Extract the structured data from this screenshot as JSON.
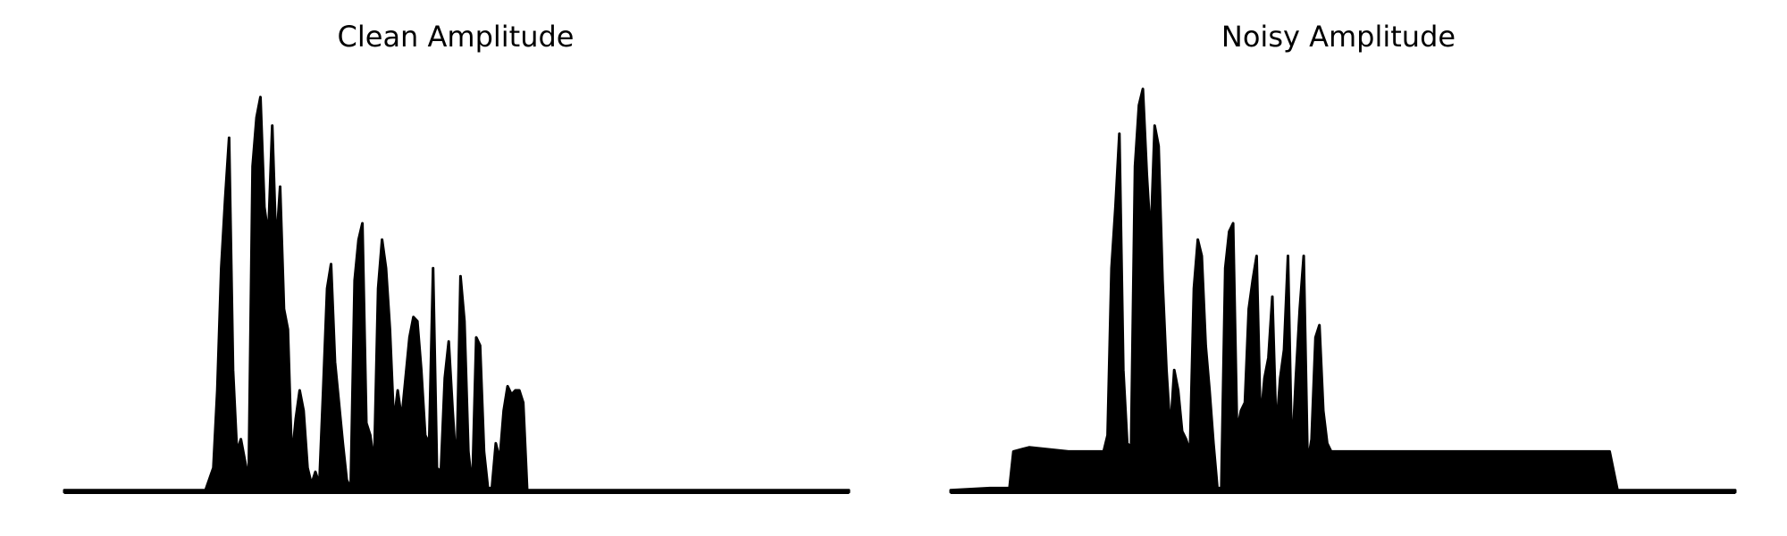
{
  "chart_data": [
    {
      "type": "area",
      "title": "Clean Amplitude",
      "xlabel": "",
      "ylabel": "",
      "axes_visible": false,
      "grid": false,
      "color": "#000000",
      "x": [
        0.0,
        0.05,
        0.1,
        0.15,
        0.18,
        0.19,
        0.195,
        0.2,
        0.205,
        0.21,
        0.215,
        0.22,
        0.225,
        0.23,
        0.235,
        0.24,
        0.245,
        0.25,
        0.255,
        0.26,
        0.265,
        0.27,
        0.275,
        0.28,
        0.285,
        0.29,
        0.295,
        0.3,
        0.305,
        0.31,
        0.315,
        0.32,
        0.325,
        0.33,
        0.335,
        0.34,
        0.345,
        0.35,
        0.355,
        0.36,
        0.365,
        0.37,
        0.375,
        0.38,
        0.385,
        0.39,
        0.395,
        0.4,
        0.405,
        0.41,
        0.415,
        0.42,
        0.425,
        0.43,
        0.435,
        0.44,
        0.445,
        0.45,
        0.455,
        0.46,
        0.465,
        0.47,
        0.475,
        0.48,
        0.485,
        0.49,
        0.495,
        0.5,
        0.505,
        0.51,
        0.515,
        0.52,
        0.525,
        0.53,
        0.535,
        0.54,
        0.545,
        0.55,
        0.555,
        0.56,
        0.565,
        0.57,
        0.575,
        0.58,
        0.585,
        0.59,
        0.595,
        0.6,
        0.605,
        0.61,
        0.615,
        0.62,
        0.625,
        0.63,
        0.635,
        0.64,
        0.645,
        0.65,
        0.655,
        0.66,
        0.665,
        0.67,
        0.675,
        0.68,
        0.685,
        0.69,
        0.695,
        0.7,
        0.705,
        0.71,
        0.72,
        0.75,
        0.8,
        0.85,
        0.9,
        0.95,
        1.0
      ],
      "y": [
        0.005,
        0.005,
        0.005,
        0.005,
        0.005,
        0.06,
        0.25,
        0.55,
        0.72,
        0.87,
        0.3,
        0.1,
        0.13,
        0.08,
        0.03,
        0.8,
        0.92,
        0.97,
        0.7,
        0.63,
        0.9,
        0.6,
        0.75,
        0.45,
        0.4,
        0.08,
        0.18,
        0.25,
        0.2,
        0.06,
        0.02,
        0.05,
        0.02,
        0.25,
        0.5,
        0.56,
        0.32,
        0.22,
        0.12,
        0.03,
        0.01,
        0.52,
        0.62,
        0.66,
        0.17,
        0.14,
        0.07,
        0.5,
        0.62,
        0.55,
        0.4,
        0.17,
        0.25,
        0.18,
        0.28,
        0.38,
        0.43,
        0.42,
        0.3,
        0.14,
        0.12,
        0.55,
        0.06,
        0.05,
        0.28,
        0.37,
        0.2,
        0.05,
        0.53,
        0.42,
        0.1,
        0.01,
        0.38,
        0.36,
        0.1,
        0.01,
        0.01,
        0.12,
        0.08,
        0.2,
        0.26,
        0.24,
        0.25,
        0.25,
        0.22,
        0.005,
        0.005,
        0.005,
        0.005,
        0.005,
        0.005,
        0.005,
        0.005,
        0.005,
        0.005,
        0.005,
        0.005,
        0.005,
        0.005,
        0.005,
        0.005,
        0.005,
        0.005,
        0.005,
        0.005,
        0.005,
        0.005,
        0.005,
        0.005,
        0.005,
        0.005,
        0.005,
        0.005,
        0.005,
        0.005,
        0.005,
        0.005
      ]
    },
    {
      "type": "area",
      "title": "Noisy Amplitude",
      "xlabel": "",
      "ylabel": "",
      "axes_visible": false,
      "grid": false,
      "color": "#000000",
      "x": [
        0.0,
        0.05,
        0.075,
        0.08,
        0.1,
        0.15,
        0.195,
        0.2,
        0.205,
        0.21,
        0.215,
        0.22,
        0.225,
        0.23,
        0.235,
        0.24,
        0.245,
        0.25,
        0.255,
        0.26,
        0.265,
        0.27,
        0.275,
        0.28,
        0.285,
        0.29,
        0.295,
        0.3,
        0.305,
        0.31,
        0.315,
        0.32,
        0.325,
        0.33,
        0.335,
        0.34,
        0.345,
        0.35,
        0.355,
        0.36,
        0.365,
        0.37,
        0.375,
        0.38,
        0.385,
        0.39,
        0.395,
        0.4,
        0.405,
        0.41,
        0.415,
        0.42,
        0.425,
        0.43,
        0.435,
        0.44,
        0.445,
        0.45,
        0.455,
        0.46,
        0.465,
        0.47,
        0.475,
        0.48,
        0.485,
        0.49,
        0.495,
        0.5,
        0.505,
        0.51,
        0.515,
        0.52,
        0.525,
        0.53,
        0.535,
        0.54,
        0.545,
        0.55,
        0.555,
        0.56,
        0.565,
        0.57,
        0.575,
        0.58,
        0.585,
        0.59,
        0.595,
        0.6,
        0.605,
        0.61,
        0.615,
        0.62,
        0.625,
        0.63,
        0.635,
        0.64,
        0.645,
        0.65,
        0.655,
        0.66,
        0.665,
        0.67,
        0.675,
        0.68,
        0.685,
        0.69,
        0.695,
        0.7,
        0.705,
        0.71,
        0.72,
        0.75,
        0.8,
        0.84,
        0.85,
        0.88,
        0.9,
        0.95,
        1.0
      ],
      "y": [
        0.005,
        0.01,
        0.01,
        0.1,
        0.11,
        0.1,
        0.1,
        0.14,
        0.55,
        0.7,
        0.88,
        0.3,
        0.12,
        0.11,
        0.8,
        0.95,
        0.99,
        0.78,
        0.62,
        0.9,
        0.85,
        0.52,
        0.3,
        0.15,
        0.3,
        0.25,
        0.15,
        0.13,
        0.1,
        0.5,
        0.62,
        0.58,
        0.36,
        0.25,
        0.12,
        0.01,
        0.01,
        0.55,
        0.64,
        0.66,
        0.15,
        0.2,
        0.22,
        0.45,
        0.52,
        0.58,
        0.17,
        0.28,
        0.33,
        0.48,
        0.15,
        0.28,
        0.35,
        0.58,
        0.08,
        0.28,
        0.45,
        0.58,
        0.07,
        0.13,
        0.38,
        0.41,
        0.2,
        0.12,
        0.1,
        0.1,
        0.1,
        0.1,
        0.1,
        0.1,
        0.1,
        0.1,
        0.1,
        0.1,
        0.1,
        0.1,
        0.1,
        0.1,
        0.1,
        0.1,
        0.1,
        0.1,
        0.1,
        0.1,
        0.1,
        0.1,
        0.1,
        0.1,
        0.1,
        0.1,
        0.1,
        0.1,
        0.1,
        0.1,
        0.1,
        0.1,
        0.1,
        0.1,
        0.1,
        0.1,
        0.1,
        0.1,
        0.1,
        0.1,
        0.1,
        0.1,
        0.1,
        0.1,
        0.1,
        0.1,
        0.1,
        0.1,
        0.1,
        0.1,
        0.005,
        0.005,
        0.005,
        0.005,
        0.005
      ]
    }
  ]
}
